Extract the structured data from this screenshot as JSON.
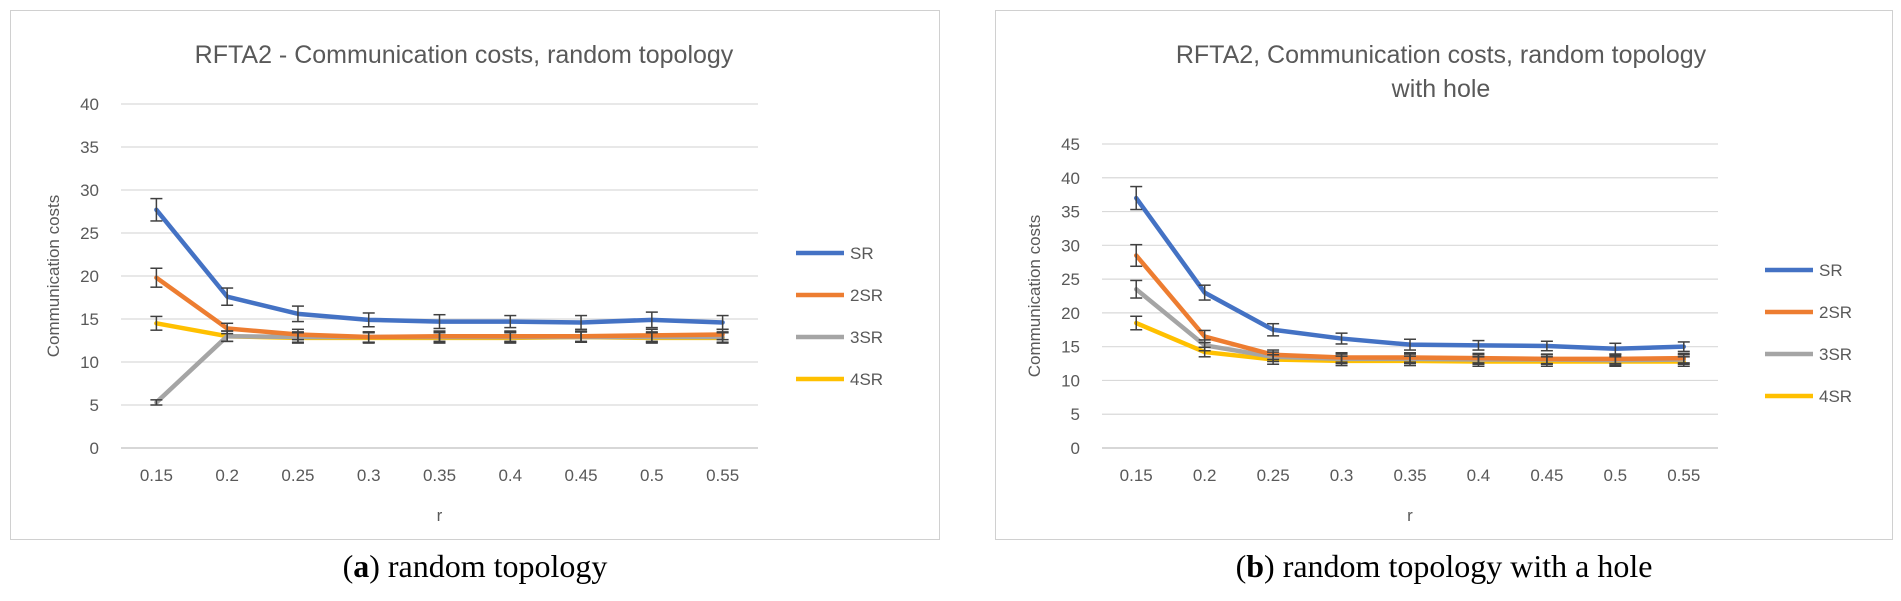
{
  "chart_data": [
    {
      "type": "line",
      "title": [
        "RFTA2 - Communication costs, random topology"
      ],
      "xlabel": "r",
      "ylabel": "Communication costs",
      "categories": [
        "0.15",
        "0.2",
        "0.25",
        "0.3",
        "0.35",
        "0.4",
        "0.45",
        "0.5",
        "0.55"
      ],
      "ylim": [
        0,
        40
      ],
      "yticks": [
        "0",
        "5",
        "10",
        "15",
        "20",
        "25",
        "30",
        "35",
        "40"
      ],
      "grid": true,
      "legend": "right",
      "series": [
        {
          "name": "SR",
          "color": "#4472C4",
          "values": [
            27.7,
            17.6,
            15.6,
            14.9,
            14.7,
            14.7,
            14.6,
            14.9,
            14.6
          ],
          "errors": [
            1.3,
            1.0,
            0.9,
            0.8,
            0.8,
            0.7,
            0.8,
            0.9,
            0.8
          ]
        },
        {
          "name": "2SR",
          "color": "#ED7D31",
          "values": [
            19.8,
            13.9,
            13.2,
            12.9,
            13.0,
            13.0,
            13.0,
            13.1,
            13.2
          ],
          "errors": [
            1.1,
            0.6,
            0.6,
            0.6,
            0.6,
            0.6,
            0.6,
            0.7,
            0.6
          ]
        },
        {
          "name": "3SR",
          "color": "#A5A5A5",
          "values": [
            5.3,
            13.0,
            12.9,
            12.9,
            12.9,
            12.9,
            12.9,
            12.9,
            12.9
          ],
          "errors": [
            0.3,
            0.6,
            0.6,
            0.6,
            0.6,
            0.6,
            0.6,
            0.6,
            0.6
          ]
        },
        {
          "name": "4SR",
          "color": "#FFC000",
          "values": [
            14.5,
            13.0,
            12.8,
            12.8,
            12.8,
            12.8,
            12.9,
            12.8,
            12.8
          ],
          "errors": [
            0.8,
            0.6,
            0.6,
            0.6,
            0.6,
            0.6,
            0.6,
            0.6,
            0.6
          ]
        }
      ],
      "caption": {
        "letter": "a",
        "text": " random topology"
      }
    },
    {
      "type": "line",
      "title": [
        "RFTA2, Communication costs, random topology",
        "with hole"
      ],
      "xlabel": "r",
      "ylabel": "Communication costs",
      "categories": [
        "0.15",
        "0.2",
        "0.25",
        "0.3",
        "0.35",
        "0.4",
        "0.45",
        "0.5",
        "0.55"
      ],
      "ylim": [
        0,
        45
      ],
      "yticks": [
        "0",
        "5",
        "10",
        "15",
        "20",
        "25",
        "30",
        "35",
        "40",
        "45"
      ],
      "grid": true,
      "legend": "right",
      "series": [
        {
          "name": "SR",
          "color": "#4472C4",
          "values": [
            37.0,
            23.0,
            17.5,
            16.2,
            15.3,
            15.2,
            15.1,
            14.7,
            15.0
          ],
          "errors": [
            1.7,
            1.1,
            0.9,
            0.8,
            0.8,
            0.7,
            0.7,
            0.8,
            0.7
          ]
        },
        {
          "name": "2SR",
          "color": "#ED7D31",
          "values": [
            28.5,
            16.5,
            13.8,
            13.4,
            13.4,
            13.3,
            13.2,
            13.2,
            13.3
          ],
          "errors": [
            1.6,
            0.9,
            0.7,
            0.7,
            0.7,
            0.7,
            0.7,
            0.7,
            0.7
          ]
        },
        {
          "name": "3SR",
          "color": "#A5A5A5",
          "values": [
            23.5,
            15.2,
            13.5,
            13.2,
            13.2,
            13.1,
            13.1,
            13.0,
            13.1
          ],
          "errors": [
            1.3,
            0.8,
            0.7,
            0.7,
            0.7,
            0.7,
            0.7,
            0.7,
            0.7
          ]
        },
        {
          "name": "4SR",
          "color": "#FFC000",
          "values": [
            18.5,
            14.2,
            13.1,
            12.9,
            12.9,
            12.8,
            12.8,
            12.8,
            12.8
          ],
          "errors": [
            1.0,
            0.7,
            0.7,
            0.7,
            0.7,
            0.7,
            0.7,
            0.7,
            0.7
          ]
        }
      ],
      "caption": {
        "letter": "b",
        "text": " random topology with a hole"
      }
    }
  ]
}
